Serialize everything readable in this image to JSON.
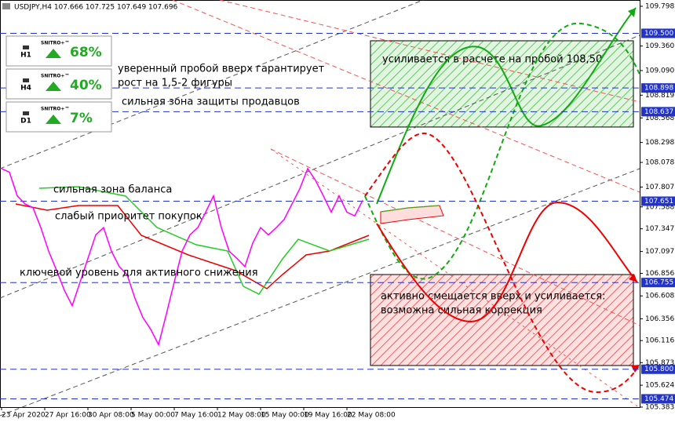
{
  "chart_data": {
    "type": "line",
    "title": "USDJPY,H4  107.666 107.725 107.649 107.696",
    "ylim": [
      105.383,
      109.798
    ],
    "yticks": [
      109.798,
      {
        "value": 109.36,
        "label": "109.360"
      },
      {
        "value": 109.09,
        "label": "109.090"
      },
      108.819,
      108.568,
      108.298,
      108.078,
      107.807,
      107.588,
      107.347,
      107.097,
      106.856,
      106.608,
      106.356,
      106.116,
      105.873,
      105.624,
      105.383
    ],
    "x_labels": [
      "23 Apr 2020",
      "27 Apr 16:00",
      "30 Apr 08:00",
      "5 May 00:00",
      "7 May 16:00",
      "12 May 08:00",
      "15 May 00:00",
      "19 May 16:00",
      "22 May 08:00"
    ],
    "series": [
      {
        "color": "#ff00ff",
        "values": [
          108.01,
          107.97,
          107.71,
          107.62,
          107.58,
          107.36,
          107.1,
          106.89,
          106.67,
          106.5,
          106.76,
          107.02,
          107.28,
          107.36,
          107.1,
          106.93,
          106.84,
          106.58,
          106.37,
          106.24,
          106.07,
          106.41,
          106.76,
          107.1,
          107.28,
          107.36,
          107.53,
          107.71,
          107.36,
          107.1,
          107.02,
          106.93,
          107.19,
          107.36,
          107.28,
          107.36,
          107.45,
          107.62,
          107.79,
          108.01,
          107.88,
          107.71,
          107.53,
          107.71,
          107.53,
          107.49,
          107.66
        ]
      }
    ],
    "levels": [
      {
        "value": 109.5,
        "label": "109.500"
      },
      108.898,
      108.637,
      107.651,
      106.755,
      {
        "value": 105.8,
        "label": "105.800"
      },
      105.474
    ],
    "zones": [
      {
        "range": [
          108.468,
          109.418
        ],
        "color": "#33bb33",
        "label": [
          "усиливается в расчете на пробой 108,50"
        ]
      },
      {
        "range": [
          105.841,
          106.843
        ],
        "color": "#ee3333",
        "label": [
          "активно смещается вверх и усиливается:",
          "возможна сильная коррекция"
        ]
      }
    ],
    "panels": [
      {
        "timeframe": "H1",
        "brand": "SNITRO+™",
        "percent": "68%"
      },
      {
        "timeframe": "H4",
        "brand": "SNITRO+™",
        "percent": "40%"
      },
      {
        "timeframe": "D1",
        "brand": "SNITRO+™",
        "percent": "7%"
      }
    ],
    "annotations": [
      "уверенный пробой вверх гарантирует",
      "рост на 1,5-2 фигуры",
      "сильная зона защиты продавцов",
      "сильная зона баланса",
      "слабый приоритет покупок",
      "ключевой уровень для активного снижения"
    ]
  }
}
